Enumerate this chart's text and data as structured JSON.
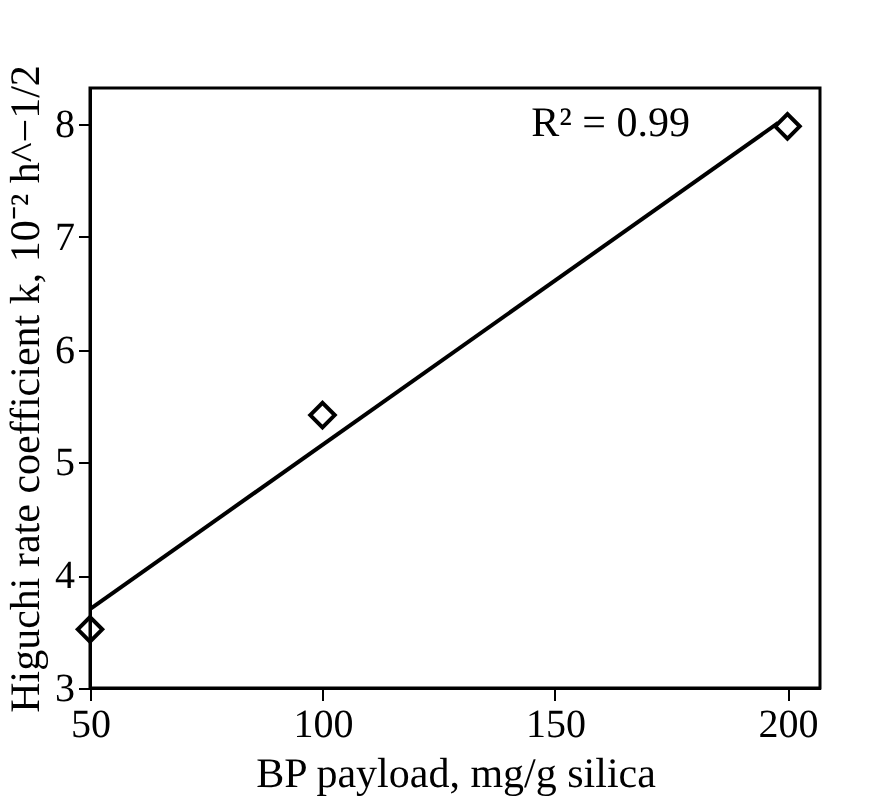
{
  "chart_data": {
    "type": "scatter",
    "xlabel": "BP payload, mg/g silica",
    "ylabel": "Higuchi rate coefficient k, 10⁻² h^−1/2",
    "x": [
      50,
      100,
      200
    ],
    "series": [
      {
        "color": "#000000",
        "marker": "diamond",
        "values": [
          3.52,
          5.42,
          7.98
        ]
      },
      {
        "type": "line",
        "color": "#000000",
        "x": [
          50,
          198
        ],
        "values": [
          3.7,
          8.01
        ],
        "marker": "none",
        "line_style": "solid"
      }
    ],
    "annotations": [
      "R² = 0.99"
    ],
    "xlim": [
      50,
      207
    ],
    "ylim": [
      3,
      8.32
    ],
    "xticks": [
      50,
      100,
      150,
      200
    ],
    "yticks": [
      3,
      4,
      5,
      6,
      7,
      8
    ],
    "grid": false
  }
}
